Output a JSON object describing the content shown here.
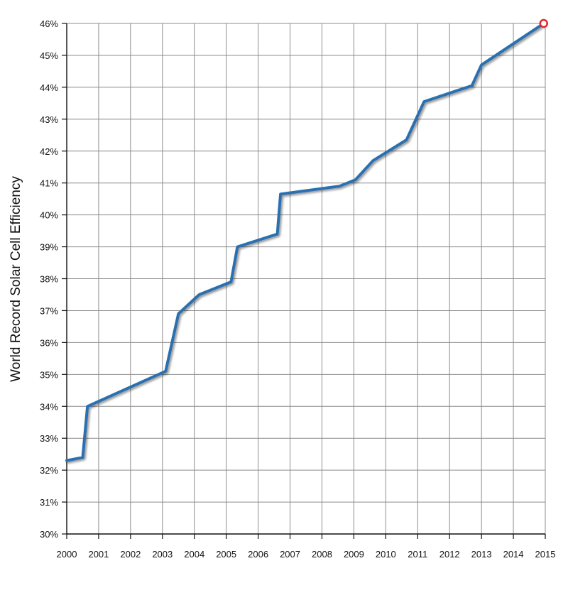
{
  "chart_data": {
    "type": "line",
    "title": "",
    "xlabel": "",
    "ylabel": "World Record Solar Cell Efficiency",
    "xlim": [
      2000,
      2015
    ],
    "ylim": [
      30,
      46
    ],
    "x_ticks": [
      "2000",
      "2001",
      "2002",
      "2003",
      "2004",
      "2005",
      "2006",
      "2007",
      "2008",
      "2009",
      "2010",
      "2011",
      "2012",
      "2013",
      "2014",
      "2015"
    ],
    "y_ticks": [
      "30%",
      "31%",
      "32%",
      "33%",
      "34%",
      "35%",
      "36%",
      "37%",
      "38%",
      "39%",
      "40%",
      "41%",
      "42%",
      "43%",
      "44%",
      "45%",
      "46%"
    ],
    "grid": true,
    "series": [
      {
        "color": "#2b6fb0",
        "points": [
          [
            2000.0,
            32.3
          ],
          [
            2000.5,
            32.4
          ],
          [
            2000.65,
            34.0
          ],
          [
            2003.1,
            35.1
          ],
          [
            2003.5,
            36.9
          ],
          [
            2004.15,
            37.5
          ],
          [
            2005.15,
            37.9
          ],
          [
            2005.35,
            39.0
          ],
          [
            2006.6,
            39.4
          ],
          [
            2006.7,
            40.65
          ],
          [
            2008.55,
            40.9
          ],
          [
            2009.05,
            41.1
          ],
          [
            2009.6,
            41.7
          ],
          [
            2010.65,
            42.35
          ],
          [
            2011.2,
            43.55
          ],
          [
            2012.7,
            44.05
          ],
          [
            2013.0,
            44.7
          ],
          [
            2014.95,
            46.0
          ]
        ]
      }
    ],
    "highlight_point": {
      "x": 2014.95,
      "y": 46.0,
      "color": "#e0292b"
    }
  }
}
